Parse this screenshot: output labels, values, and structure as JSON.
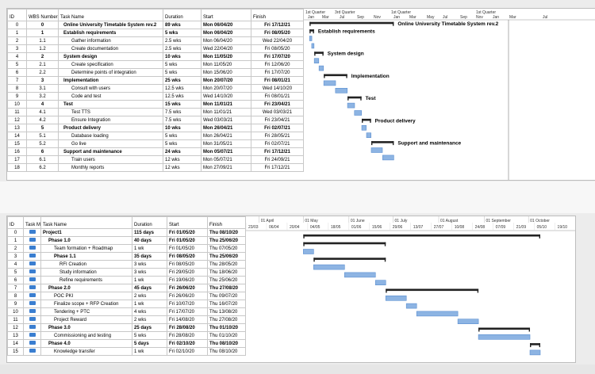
{
  "top": {
    "headers": {
      "id": "ID",
      "wbs": "WBS Number",
      "name": "Task Name",
      "duration": "Duration",
      "start": "Start",
      "finish": "Finish"
    },
    "timeline": [
      "1st Quarter",
      "Jan",
      "Mar",
      "3rd Quarter",
      "Jul",
      "Sep",
      "Nov",
      "1st Quarter",
      "Jan",
      "Mar",
      "May",
      "Jul",
      "Sep",
      "Nov",
      "1st Quarter",
      "Jan",
      "Mar",
      "3rd Quarter",
      "Jul"
    ],
    "rows": [
      {
        "id": "0",
        "wbs": "0",
        "name": "Online University Timetable System rev.2",
        "duration": "89 wks",
        "start": "Mon 06/04/20",
        "finish": "Fri 17/12/21",
        "bold": true
      },
      {
        "id": "1",
        "wbs": "1",
        "name": "Establish requirements",
        "duration": "5 wks",
        "start": "Mon 06/04/20",
        "finish": "Fri 08/05/20",
        "bold": true
      },
      {
        "id": "2",
        "wbs": "1.1",
        "name": "Gather information",
        "duration": "2.5 wks",
        "start": "Mon 06/04/20",
        "finish": "Wed 22/04/20",
        "bold": false
      },
      {
        "id": "3",
        "wbs": "1.2",
        "name": "Create documentation",
        "duration": "2.5 wks",
        "start": "Wed 22/04/20",
        "finish": "Fri 08/05/20",
        "bold": false
      },
      {
        "id": "4",
        "wbs": "2",
        "name": "System design",
        "duration": "10 wks",
        "start": "Mon 11/05/20",
        "finish": "Fri 17/07/20",
        "bold": true
      },
      {
        "id": "5",
        "wbs": "2.1",
        "name": "Create specification",
        "duration": "5 wks",
        "start": "Mon 11/05/20",
        "finish": "Fri 12/06/20",
        "bold": false
      },
      {
        "id": "6",
        "wbs": "2.2",
        "name": "Determine points of integration",
        "duration": "5 wks",
        "start": "Mon 15/06/20",
        "finish": "Fri 17/07/20",
        "bold": false
      },
      {
        "id": "7",
        "wbs": "3",
        "name": "Implementation",
        "duration": "25 wks",
        "start": "Mon 20/07/20",
        "finish": "Fri 08/01/21",
        "bold": true
      },
      {
        "id": "8",
        "wbs": "3.1",
        "name": "Consult with users",
        "duration": "12.5 wks",
        "start": "Mon 20/07/20",
        "finish": "Wed 14/10/20",
        "bold": false
      },
      {
        "id": "9",
        "wbs": "3.2",
        "name": "Code and test",
        "duration": "12.5 wks",
        "start": "Wed 14/10/20",
        "finish": "Fri 08/01/21",
        "bold": false
      },
      {
        "id": "10",
        "wbs": "4",
        "name": "Test",
        "duration": "15 wks",
        "start": "Mon 11/01/21",
        "finish": "Fri 23/04/21",
        "bold": true
      },
      {
        "id": "11",
        "wbs": "4.1",
        "name": "Test TTS",
        "duration": "7.5 wks",
        "start": "Mon 11/01/21",
        "finish": "Wed 03/03/21",
        "bold": false
      },
      {
        "id": "12",
        "wbs": "4.2",
        "name": "Ensure Integration",
        "duration": "7.5 wks",
        "start": "Wed 03/03/21",
        "finish": "Fri 23/04/21",
        "bold": false
      },
      {
        "id": "13",
        "wbs": "5",
        "name": "Product delivery",
        "duration": "10 wks",
        "start": "Mon 26/04/21",
        "finish": "Fri 02/07/21",
        "bold": true
      },
      {
        "id": "14",
        "wbs": "5.1",
        "name": "Database loading",
        "duration": "5 wks",
        "start": "Mon 26/04/21",
        "finish": "Fri 28/05/21",
        "bold": false
      },
      {
        "id": "15",
        "wbs": "5.2",
        "name": "Go live",
        "duration": "5 wks",
        "start": "Mon 31/05/21",
        "finish": "Fri 02/07/21",
        "bold": false
      },
      {
        "id": "16",
        "wbs": "6",
        "name": "Support and maintenance",
        "duration": "24 wks",
        "start": "Mon 05/07/21",
        "finish": "Fri 17/12/21",
        "bold": true
      },
      {
        "id": "17",
        "wbs": "6.1",
        "name": "Train users",
        "duration": "12 wks",
        "start": "Mon 05/07/21",
        "finish": "Fri 24/09/21",
        "bold": false
      },
      {
        "id": "18",
        "wbs": "6.2",
        "name": "Monthly reports",
        "duration": "12 wks",
        "start": "Mon 27/09/21",
        "finish": "Fri 17/12/21",
        "bold": false
      }
    ]
  },
  "bottom": {
    "headers": {
      "id": "ID",
      "mode": "Task Mode",
      "name": "Task Name",
      "duration": "Duration",
      "start": "Start",
      "finish": "Finish"
    },
    "timeline_months": [
      "01 April",
      "01 May",
      "01 June",
      "01 July",
      "01 August",
      "01 September",
      "01 October"
    ],
    "timeline_days": [
      "23/03",
      "06/04",
      "20/04",
      "04/05",
      "18/05",
      "01/06",
      "15/06",
      "29/06",
      "13/07",
      "27/07",
      "10/08",
      "24/08",
      "07/09",
      "21/09",
      "05/10",
      "19/10"
    ],
    "rows": [
      {
        "id": "0",
        "name": "Project1",
        "duration": "115 days",
        "start": "Fri 01/05/20",
        "finish": "Thu 08/10/20",
        "bold": true,
        "indent": 0
      },
      {
        "id": "1",
        "name": "Phase 1.0",
        "duration": "40 days",
        "start": "Fri 01/05/20",
        "finish": "Thu 25/06/20",
        "bold": true,
        "indent": 1
      },
      {
        "id": "2",
        "name": "Team formation + Roadmap",
        "duration": "1 wk",
        "start": "Fri 01/05/20",
        "finish": "Thu 07/05/20",
        "bold": false,
        "indent": 2
      },
      {
        "id": "3",
        "name": "Phase 1.1",
        "duration": "35 days",
        "start": "Fri 08/05/20",
        "finish": "Thu 25/06/20",
        "bold": true,
        "indent": 2
      },
      {
        "id": "4",
        "name": "RFI Creation",
        "duration": "3 wks",
        "start": "Fri 08/05/20",
        "finish": "Thu 28/05/20",
        "bold": false,
        "indent": 3
      },
      {
        "id": "5",
        "name": "Study information",
        "duration": "3 wks",
        "start": "Fri 29/05/20",
        "finish": "Thu 18/06/20",
        "bold": false,
        "indent": 3
      },
      {
        "id": "6",
        "name": "Refine requirements",
        "duration": "1 wk",
        "start": "Fri 19/06/20",
        "finish": "Thu 25/06/20",
        "bold": false,
        "indent": 3
      },
      {
        "id": "7",
        "name": "Phase 2.0",
        "duration": "45 days",
        "start": "Fri 26/06/20",
        "finish": "Thu 27/08/20",
        "bold": true,
        "indent": 1
      },
      {
        "id": "8",
        "name": "POC PKI",
        "duration": "2 wks",
        "start": "Fri 26/06/20",
        "finish": "Thu 09/07/20",
        "bold": false,
        "indent": 2
      },
      {
        "id": "9",
        "name": "Finalize scope + RFP Creation",
        "duration": "1 wk",
        "start": "Fri 10/07/20",
        "finish": "Thu 16/07/20",
        "bold": false,
        "indent": 2
      },
      {
        "id": "10",
        "name": "Tendering + PTC",
        "duration": "4 wks",
        "start": "Fri 17/07/20",
        "finish": "Thu 13/08/20",
        "bold": false,
        "indent": 2
      },
      {
        "id": "11",
        "name": "Project Reward",
        "duration": "2 wks",
        "start": "Fri 14/08/20",
        "finish": "Thu 27/08/20",
        "bold": false,
        "indent": 2
      },
      {
        "id": "12",
        "name": "Phase 3.0",
        "duration": "25 days",
        "start": "Fri 28/08/20",
        "finish": "Thu 01/10/20",
        "bold": true,
        "indent": 1
      },
      {
        "id": "13",
        "name": "Commissioning and testing",
        "duration": "5 wks",
        "start": "Fri 28/08/20",
        "finish": "Thu 01/10/20",
        "bold": false,
        "indent": 2
      },
      {
        "id": "14",
        "name": "Phase 4.0",
        "duration": "5 days",
        "start": "Fri 02/10/20",
        "finish": "Thu 08/10/20",
        "bold": true,
        "indent": 1
      },
      {
        "id": "15",
        "name": "Knowledge transfer",
        "duration": "1 wk",
        "start": "Fri 02/10/20",
        "finish": "Thu 08/10/20",
        "bold": false,
        "indent": 2
      }
    ]
  }
}
